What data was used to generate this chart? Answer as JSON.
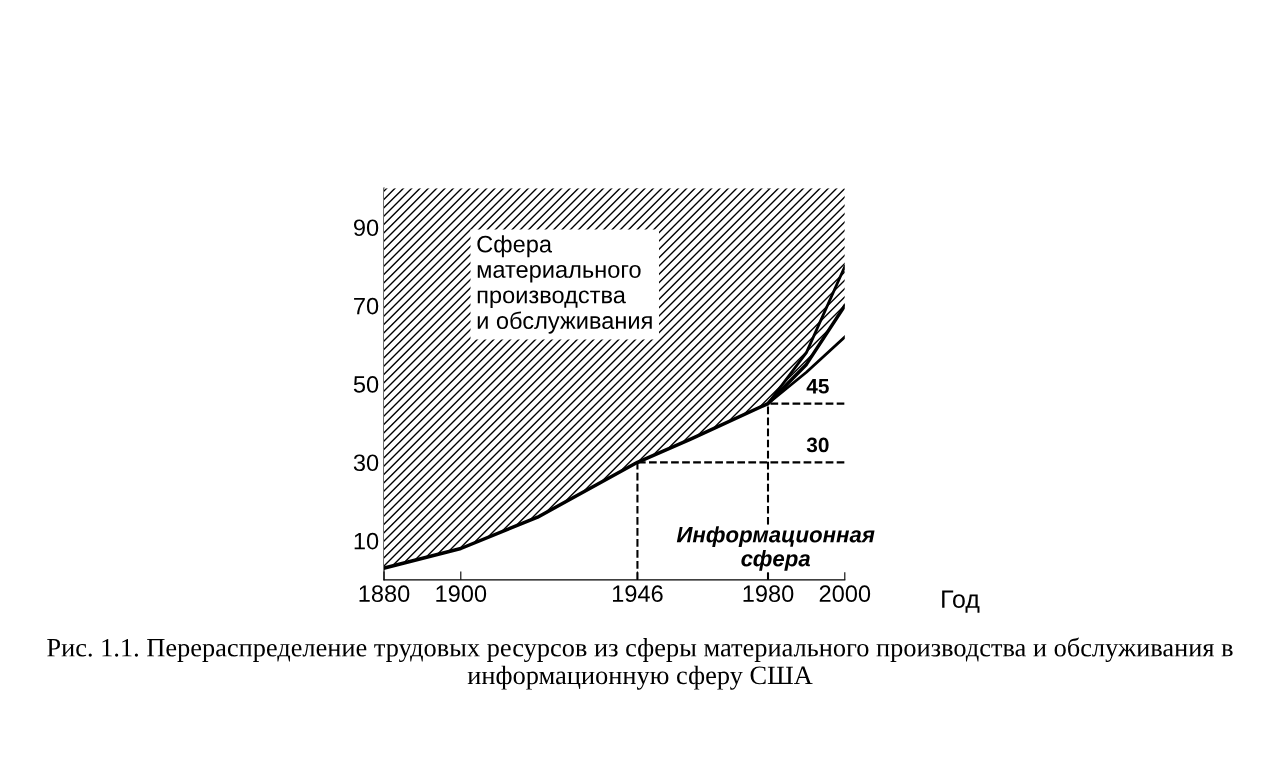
{
  "chart_data": {
    "type": "area",
    "stacked": true,
    "x": [
      1880,
      1900,
      1920,
      1946,
      1960,
      1980,
      1990,
      2000
    ],
    "series": [
      {
        "name": "Информационная сфера",
        "color": "#ffffff",
        "values": [
          3,
          8,
          16,
          30,
          36,
          45,
          55,
          70
        ]
      },
      {
        "name": "Сфера материального производства и обслуживания",
        "color": "#000000",
        "values": [
          97,
          92,
          84,
          70,
          64,
          55,
          45,
          30
        ]
      },
      {
        "type": "line",
        "color": "#000000",
        "x": [
          1980,
          1990,
          2000
        ],
        "values": [
          45,
          58,
          80
        ]
      },
      {
        "type": "line",
        "color": "#000000",
        "x": [
          1980,
          1990,
          2000
        ],
        "values": [
          45,
          53,
          62
        ]
      }
    ],
    "xlim": [
      1880,
      2000
    ],
    "xticks": [
      1880,
      1900,
      1946,
      1980,
      2000
    ],
    "ylim": [
      0,
      100
    ],
    "yticks": [
      10,
      30,
      50,
      70,
      90
    ],
    "xlabel": "Год",
    "ref_lines": [
      {
        "axis": "y",
        "value": 45,
        "label": "45",
        "line_style": "dashed"
      },
      {
        "axis": "y",
        "value": 30,
        "label": "30",
        "line_style": "dashed"
      },
      {
        "axis": "x",
        "value": 1946,
        "line_style": "dashed"
      },
      {
        "axis": "x",
        "value": 1980,
        "line_style": "dashed"
      }
    ],
    "annotations": [
      "Рис. 1.1. Перераспределение трудовых ресурсов из сферы материального производства и обслуживания в информационную сферу США"
    ],
    "grid": false
  }
}
